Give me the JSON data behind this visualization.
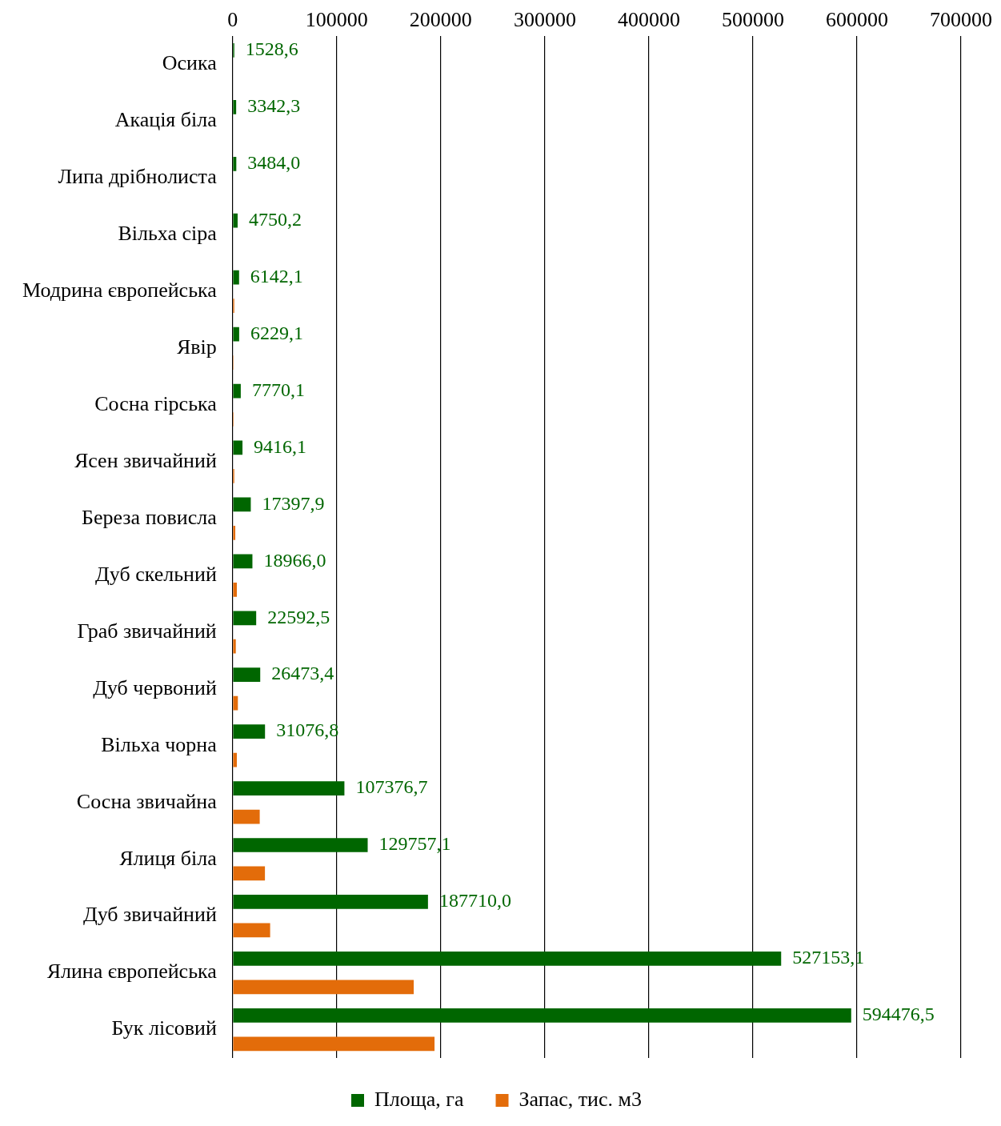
{
  "chart_data": {
    "type": "bar",
    "orientation": "horizontal",
    "categories": [
      "Осика",
      "Акація біла",
      "Липа дрібнолиста",
      "Вільха сіра",
      "Модрина європейська",
      "Явір",
      "Сосна гірська",
      "Ясен звичайний",
      "Береза повисла",
      "Дуб скельний",
      "Граб звичайний",
      "Дуб червоний",
      "Вільха чорна",
      "Сосна звичайна",
      "Ялиця біла",
      "Дуб звичайний",
      "Ялина європейська",
      "Бук лісовий"
    ],
    "series": [
      {
        "name": "Площа, га",
        "color": "#006600",
        "values": [
          1528.6,
          3342.3,
          3484.0,
          4750.2,
          6142.1,
          6229.1,
          7770.1,
          9416.1,
          17397.9,
          18966.0,
          22592.5,
          26473.4,
          31076.8,
          107376.7,
          129757.1,
          187710.0,
          527153.1,
          594476.5
        ],
        "value_labels": [
          "1528,6",
          "3342,3",
          "3484,0",
          "4750,2",
          "6142,1",
          "6229,1",
          "7770,1",
          "9416,1",
          "17397,9",
          "18966,0",
          "22592,5",
          "26473,4",
          "31076,8",
          "107376,7",
          "129757,1",
          "187710,0",
          "527153,1",
          "594476,5"
        ]
      },
      {
        "name": "Запас, тис. м3",
        "color": "#e36c0a",
        "values": [
          null,
          null,
          null,
          null,
          1500,
          800,
          900,
          1500,
          2500,
          4000,
          3000,
          5000,
          4000,
          26000,
          31000,
          36000,
          174000,
          194000
        ]
      }
    ],
    "xlim": [
      0,
      700000
    ],
    "xticks": [
      0,
      100000,
      200000,
      300000,
      400000,
      500000,
      600000,
      700000
    ],
    "grid": "x",
    "legend": "bottom"
  }
}
